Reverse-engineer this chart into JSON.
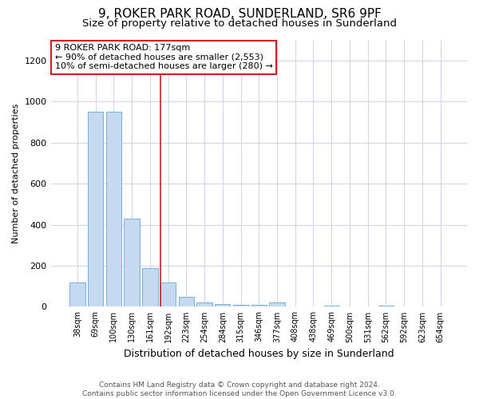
{
  "title": "9, ROKER PARK ROAD, SUNDERLAND, SR6 9PF",
  "subtitle": "Size of property relative to detached houses in Sunderland",
  "xlabel": "Distribution of detached houses by size in Sunderland",
  "ylabel": "Number of detached properties",
  "footer": "Contains HM Land Registry data © Crown copyright and database right 2024.\nContains public sector information licensed under the Open Government Licence v3.0.",
  "categories": [
    "38sqm",
    "69sqm",
    "100sqm",
    "130sqm",
    "161sqm",
    "192sqm",
    "223sqm",
    "254sqm",
    "284sqm",
    "315sqm",
    "346sqm",
    "377sqm",
    "408sqm",
    "438sqm",
    "469sqm",
    "500sqm",
    "531sqm",
    "562sqm",
    "592sqm",
    "623sqm",
    "654sqm"
  ],
  "values": [
    120,
    950,
    950,
    430,
    190,
    120,
    50,
    20,
    15,
    10,
    10,
    20,
    0,
    0,
    5,
    0,
    0,
    5,
    0,
    0,
    0
  ],
  "bar_color": "#c5d9f0",
  "bar_edge_color": "#7bafd4",
  "highlight_color": "#cc2222",
  "property_label": "9 ROKER PARK ROAD: 177sqm",
  "annotation_line1": "← 90% of detached houses are smaller (2,553)",
  "annotation_line2": "10% of semi-detached houses are larger (280) →",
  "ylim": [
    0,
    1300
  ],
  "yticks": [
    0,
    200,
    400,
    600,
    800,
    1000,
    1200
  ],
  "background_color": "#ffffff",
  "plot_bg_color": "#ffffff",
  "grid_color": "#d0d8e8",
  "title_fontsize": 11,
  "subtitle_fontsize": 9.5,
  "annotation_box_color": "#ffffff",
  "annotation_box_edge": "#cc2222",
  "red_line_index": 5
}
